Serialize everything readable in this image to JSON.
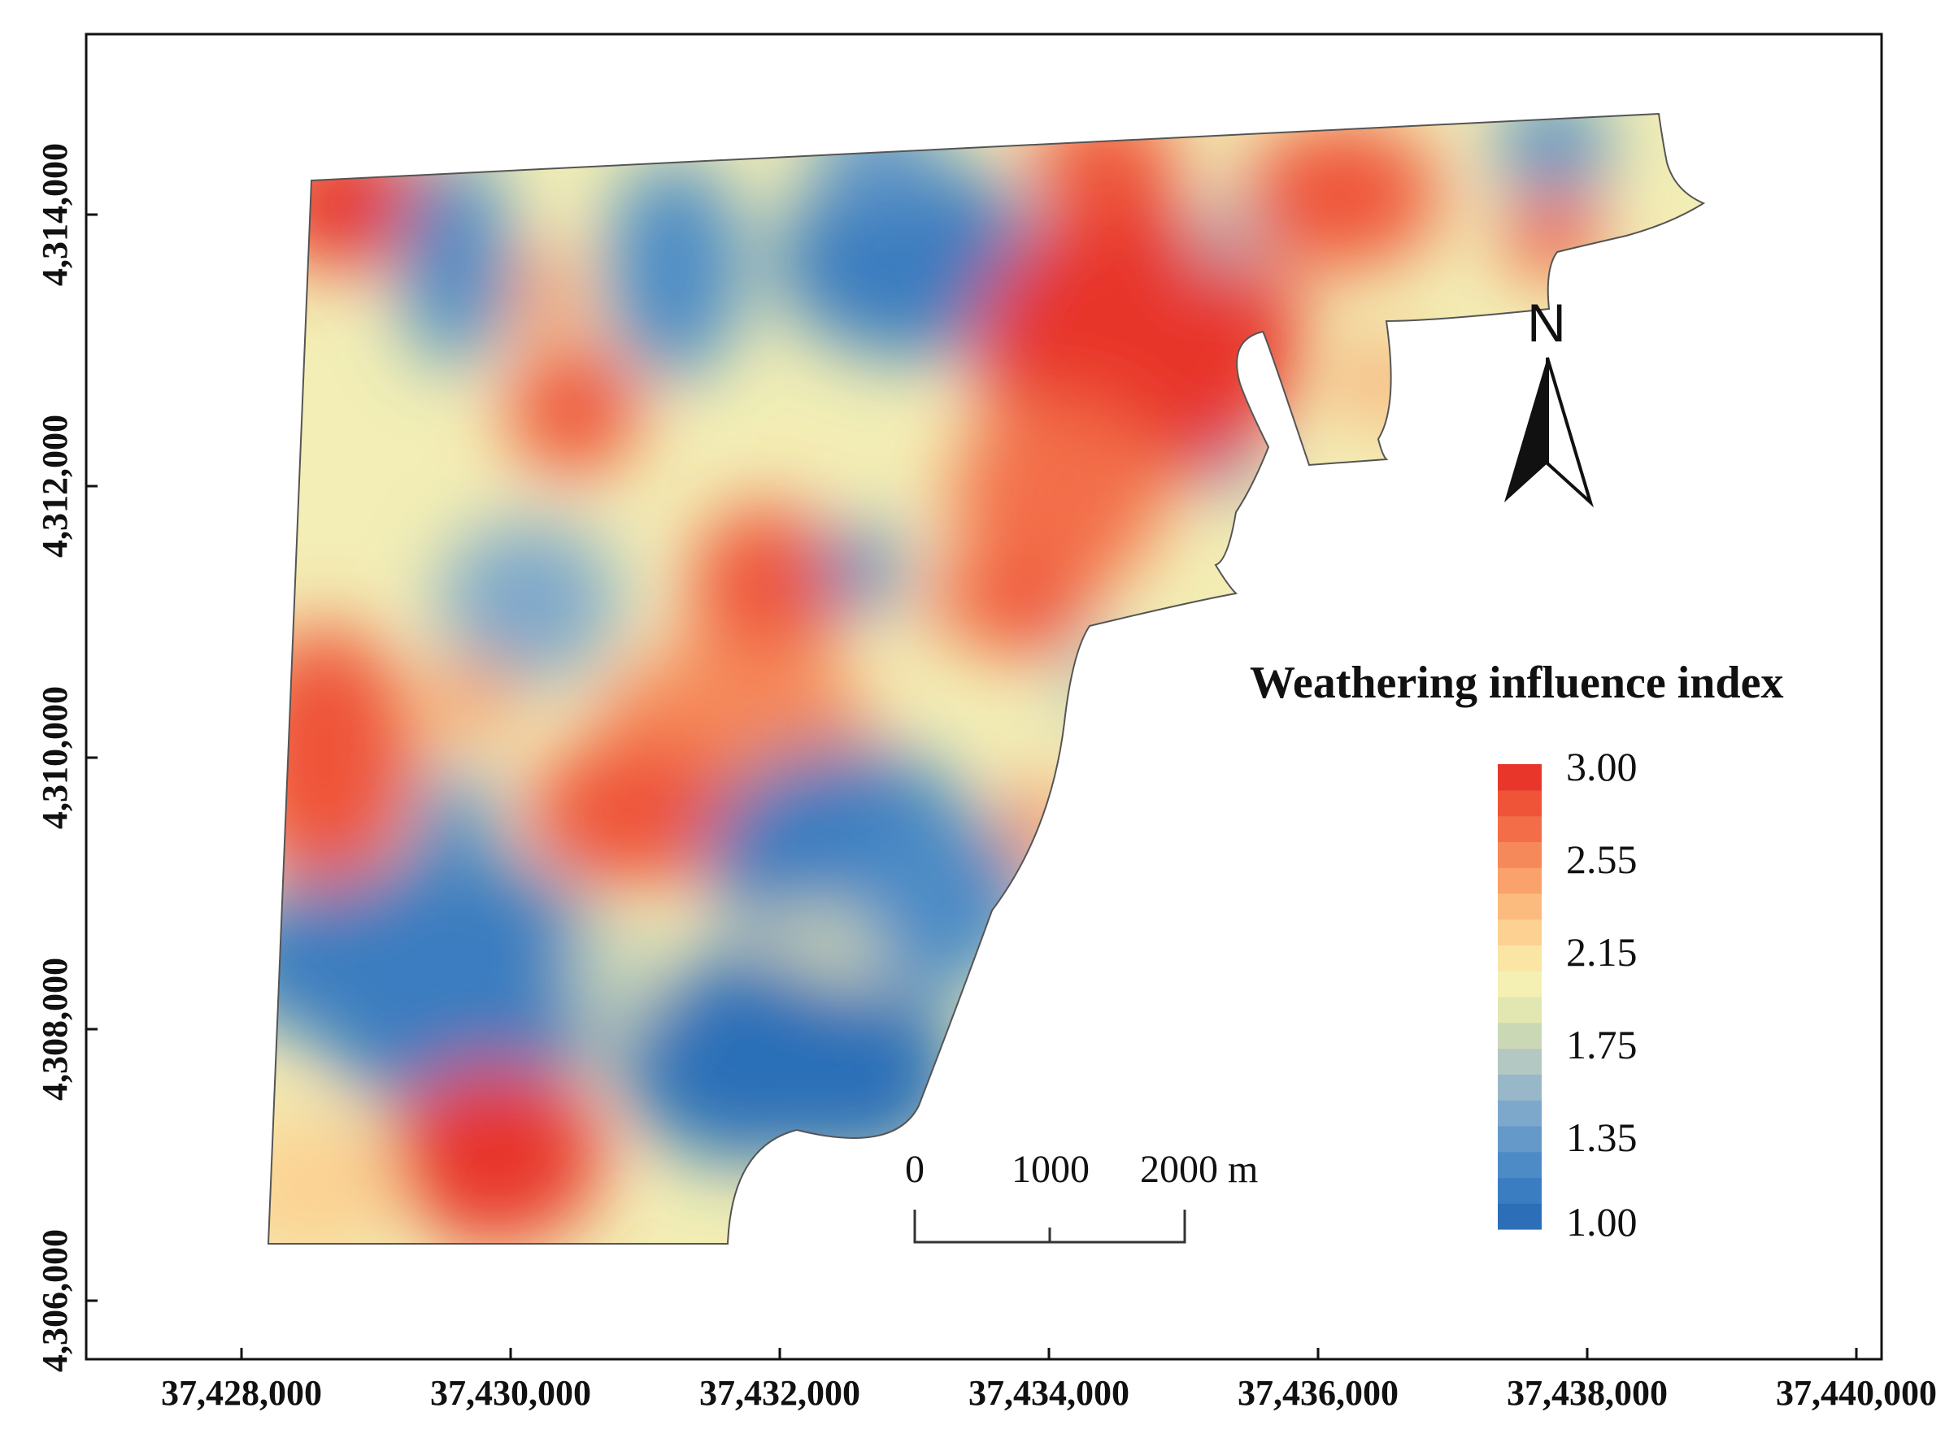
{
  "map": {
    "x_ticks": [
      "37,428,000",
      "37,430,000",
      "37,432,000",
      "37,434,000",
      "37,436,000",
      "37,438,000",
      "37,440,000"
    ],
    "y_ticks": [
      "4,314,000",
      "4,312,000",
      "4,310,000",
      "4,308,000",
      "4,306,000"
    ],
    "legend": {
      "title": "Weathering influence index",
      "labels": [
        "3.00",
        "2.55",
        "2.15",
        "1.75",
        "1.35",
        "1.00"
      ],
      "min": 1.0,
      "max": 3.0,
      "colors": [
        "#2c6fb8",
        "#3a7dc0",
        "#4c8bc6",
        "#6499c9",
        "#7ea8cb",
        "#98b8c9",
        "#b3c8c3",
        "#cbd8b6",
        "#e2e6b0",
        "#f4f0b4",
        "#fbe5a5",
        "#fcd192",
        "#fbbb7f",
        "#f9a26c",
        "#f6895a",
        "#f36e48",
        "#ef5338",
        "#e8362a"
      ]
    },
    "scale_bar": {
      "labels": [
        "0",
        "1000",
        "2000 m"
      ]
    },
    "north_arrow": {
      "label": "N"
    }
  }
}
